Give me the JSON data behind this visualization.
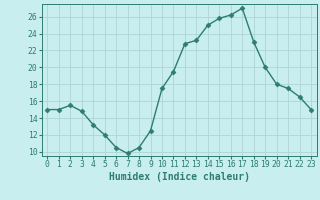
{
  "x": [
    0,
    1,
    2,
    3,
    4,
    5,
    6,
    7,
    8,
    9,
    10,
    11,
    12,
    13,
    14,
    15,
    16,
    17,
    18,
    19,
    20,
    21,
    22,
    23
  ],
  "y": [
    15,
    15,
    15.5,
    14.8,
    13.2,
    12,
    10.5,
    9.8,
    10.5,
    12.5,
    17.5,
    19.5,
    22.8,
    23.2,
    25,
    25.8,
    26.2,
    27,
    23,
    20,
    18,
    17.5,
    16.5,
    15
  ],
  "line_color": "#2e7d6e",
  "marker": "D",
  "marker_size": 2.5,
  "bg_color": "#c8eef0",
  "grid_color": "#aed4d6",
  "xlabel": "Humidex (Indice chaleur)",
  "ylim": [
    9.5,
    27.5
  ],
  "xlim": [
    -0.5,
    23.5
  ],
  "yticks": [
    10,
    12,
    14,
    16,
    18,
    20,
    22,
    24,
    26
  ],
  "xticks": [
    0,
    1,
    2,
    3,
    4,
    5,
    6,
    7,
    8,
    9,
    10,
    11,
    12,
    13,
    14,
    15,
    16,
    17,
    18,
    19,
    20,
    21,
    22,
    23
  ],
  "xtick_labels": [
    "0",
    "1",
    "2",
    "3",
    "4",
    "5",
    "6",
    "7",
    "8",
    "9",
    "10",
    "11",
    "12",
    "13",
    "14",
    "15",
    "16",
    "17",
    "18",
    "19",
    "20",
    "21",
    "22",
    "23"
  ],
  "tick_color": "#2e7d6e",
  "label_fontsize": 7,
  "tick_fontsize": 5.8,
  "linewidth": 1.0
}
